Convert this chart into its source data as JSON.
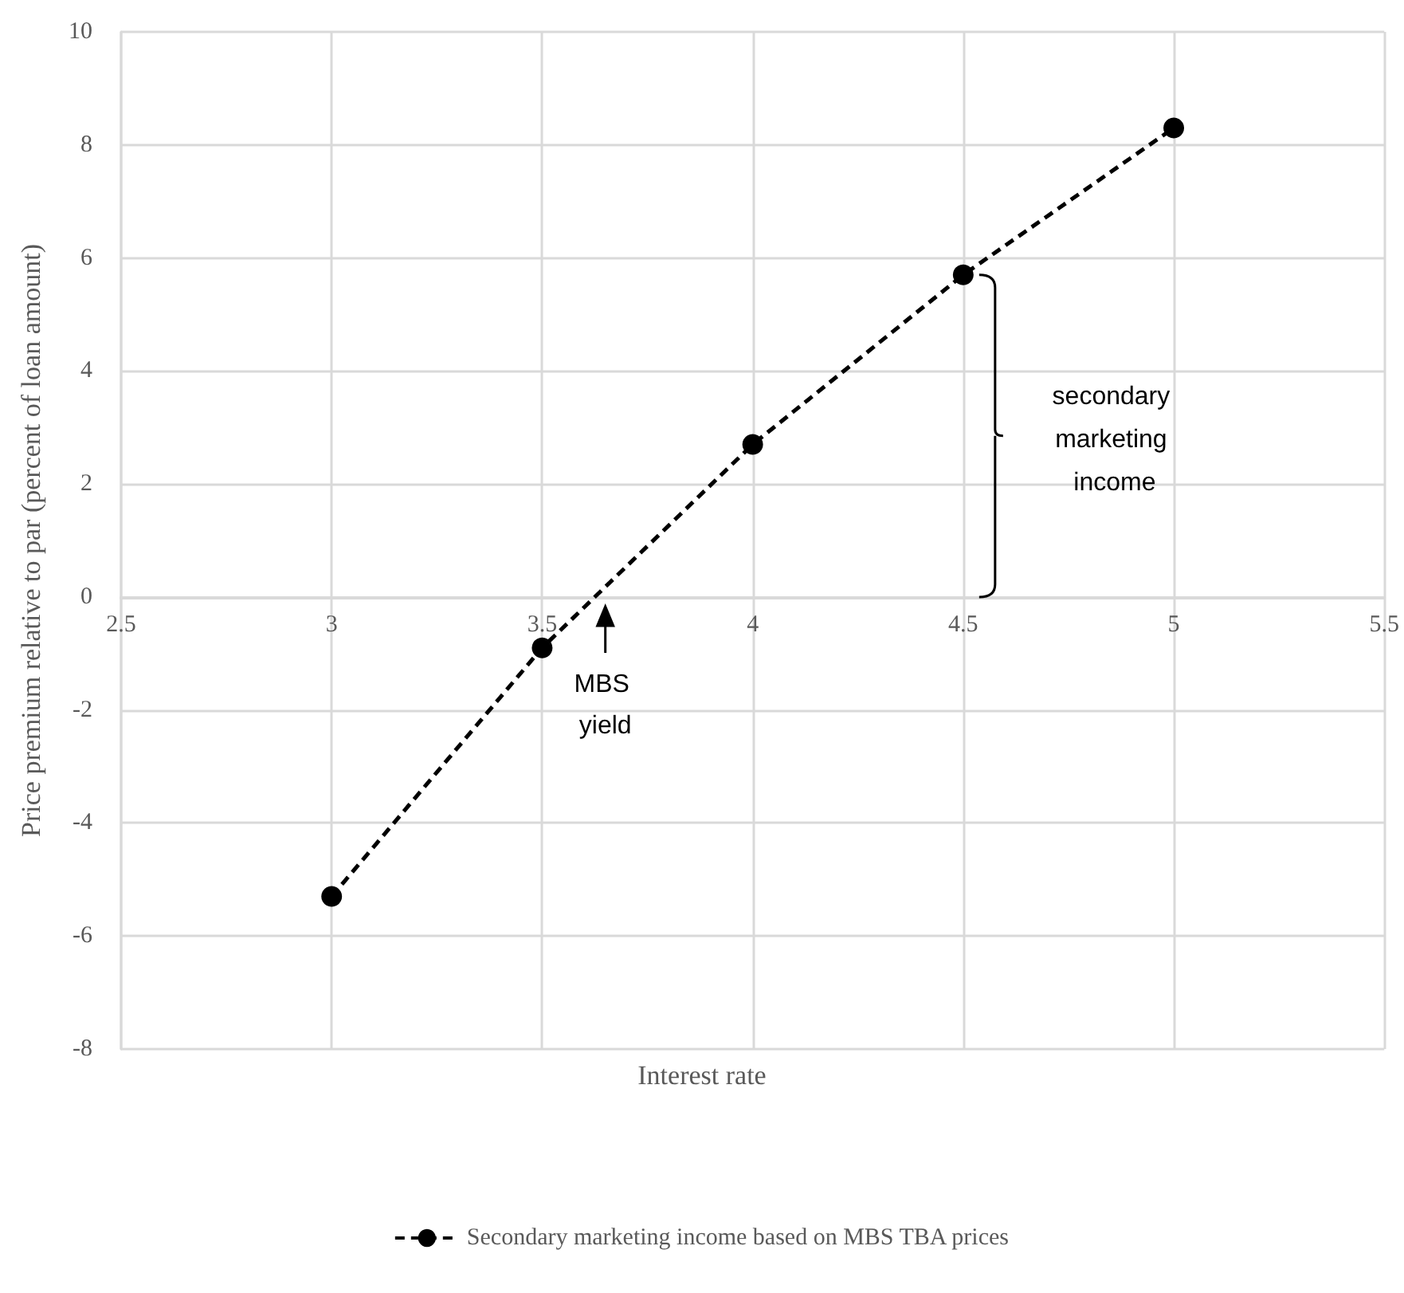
{
  "chart_data": {
    "type": "line",
    "xlabel": "Interest rate",
    "ylabel": "Price premium relative to par (percent of loan amount)",
    "x": [
      3,
      3.5,
      4,
      4.5,
      5
    ],
    "series": [
      {
        "name": "Secondary marketing income based on MBS TBA prices",
        "color": "#000000",
        "values": [
          -5.3,
          -0.9,
          2.7,
          5.7,
          8.3
        ]
      }
    ],
    "xlim": [
      2.5,
      5.5
    ],
    "xticks": [
      2.5,
      3,
      3.5,
      4,
      4.5,
      5,
      5.5
    ],
    "ylim": [
      -8,
      10
    ],
    "yticks": [
      -8,
      -6,
      -4,
      -2,
      0,
      2,
      4,
      6,
      8,
      10
    ],
    "grid": true,
    "legend": "bottom",
    "marker": "circle",
    "line_style": "dashed",
    "annotations": [
      {
        "text": "MBS yield",
        "x": 3.65,
        "y": 0
      },
      "secondary marketing income"
    ]
  }
}
